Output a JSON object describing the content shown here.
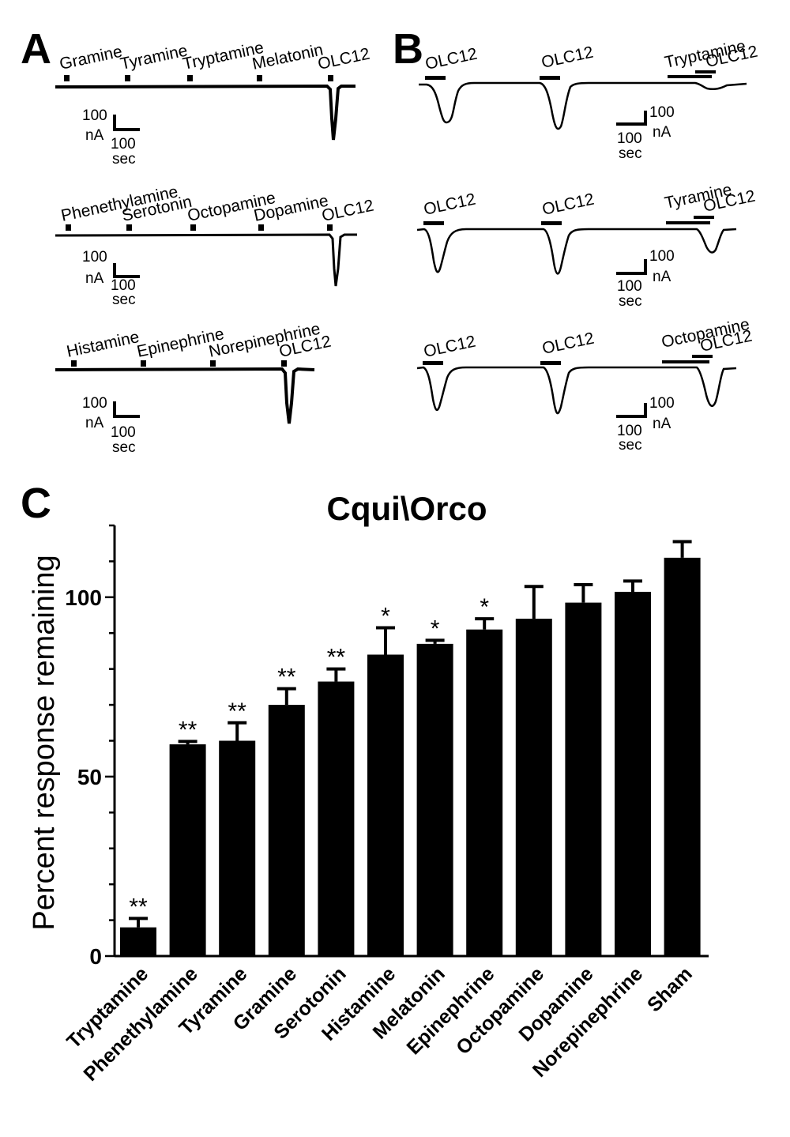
{
  "panels": {
    "A": {
      "label": "A",
      "rows": [
        {
          "stimuli": [
            "Gramine",
            "Tyramine",
            "Tryptamine",
            "Melatonin",
            "OLC12"
          ],
          "scale_current": "100",
          "scale_current_unit": "nA",
          "scale_time": "100",
          "scale_time_unit": "sec"
        },
        {
          "stimuli": [
            "Phenethylamine",
            "Serotonin",
            "Octopamine",
            "Dopamine",
            "OLC12"
          ],
          "scale_current": "100",
          "scale_current_unit": "nA",
          "scale_time": "100",
          "scale_time_unit": "sec"
        },
        {
          "stimuli": [
            "Histamine",
            "Epinephrine",
            "Norepinephrine",
            "OLC12"
          ],
          "scale_current": "100",
          "scale_current_unit": "nA",
          "scale_time": "100",
          "scale_time_unit": "sec"
        }
      ]
    },
    "B": {
      "label": "B",
      "rows": [
        {
          "stimuli": [
            "OLC12",
            "OLC12",
            "Tryptamine",
            "OLC12"
          ],
          "scale_current": "100",
          "scale_current_unit": "nA",
          "scale_time": "100",
          "scale_time_unit": "sec"
        },
        {
          "stimuli": [
            "OLC12",
            "OLC12",
            "Tyramine",
            "OLC12"
          ],
          "scale_current": "100",
          "scale_current_unit": "nA",
          "scale_time": "100",
          "scale_time_unit": "sec"
        },
        {
          "stimuli": [
            "OLC12",
            "OLC12",
            "Octopamine",
            "OLC12"
          ],
          "scale_current": "100",
          "scale_current_unit": "nA",
          "scale_time": "100",
          "scale_time_unit": "sec"
        }
      ]
    },
    "C": {
      "label": "C"
    }
  },
  "chart_data": {
    "type": "bar",
    "title": "Cqui\\Orco",
    "xlabel": "",
    "ylabel": "Percent response remaining",
    "ylim": [
      0,
      120
    ],
    "yticks": [
      0,
      50,
      100
    ],
    "categories": [
      "Tryptamine",
      "Phenethylamine",
      "Tyramine",
      "Gramine",
      "Serotonin",
      "Histamine",
      "Melatonin",
      "Epinephrine",
      "Octopamine",
      "Dopamine",
      "Norepinephrine",
      "Sham"
    ],
    "values": [
      8,
      59,
      60,
      70,
      76.5,
      84,
      87,
      91,
      94,
      98.5,
      101.5,
      111
    ],
    "errors": [
      2.5,
      0.8,
      5,
      4.5,
      3.5,
      7.5,
      1,
      3,
      9,
      5,
      3,
      4.5
    ],
    "significance": [
      "**",
      "**",
      "**",
      "**",
      "**",
      "*",
      "*",
      "*",
      "",
      "",
      "",
      ""
    ],
    "bar_color": "#000000"
  }
}
